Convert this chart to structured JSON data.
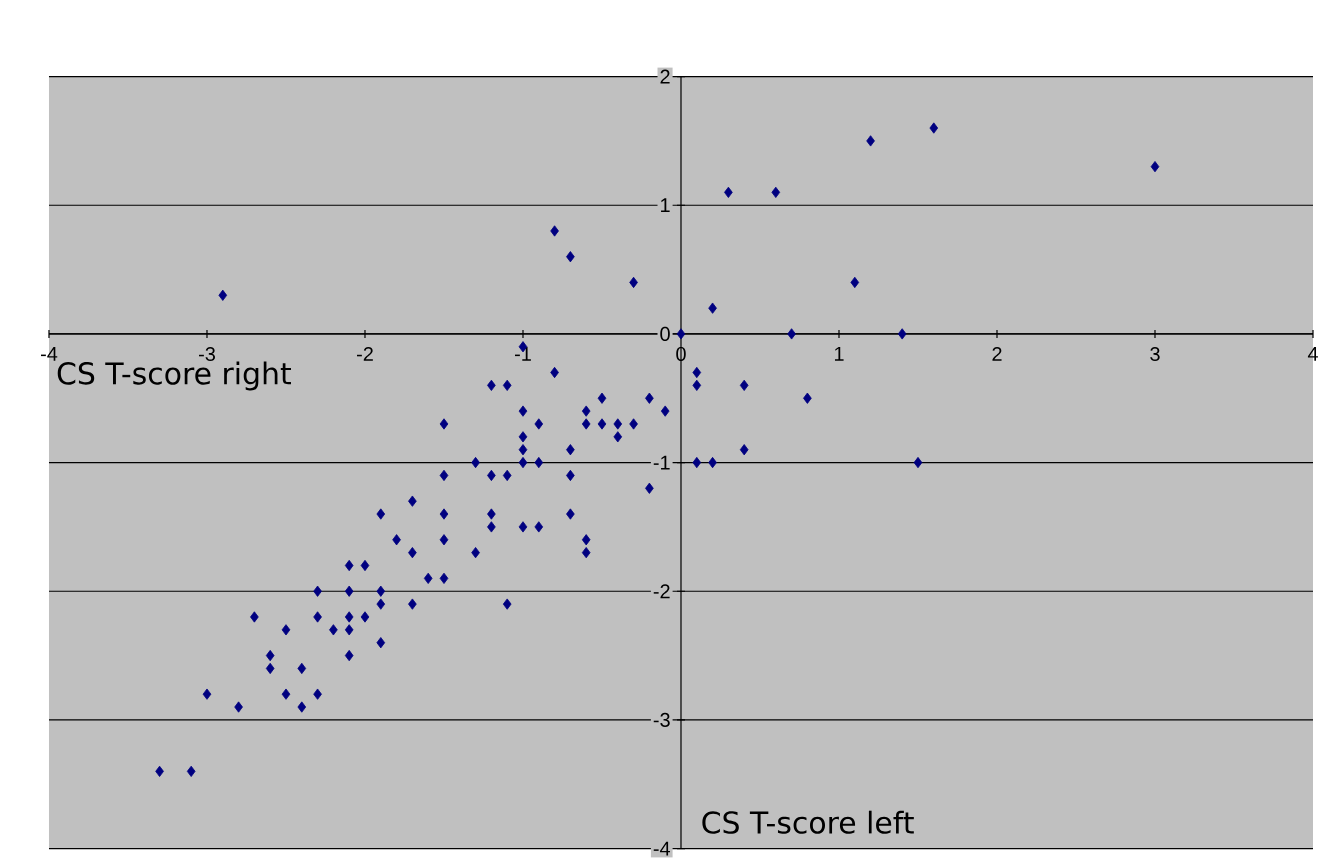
{
  "chart_data": {
    "type": "scatter",
    "xlabel": "CS T-score left",
    "ylabel": "CS T-score right",
    "xlim": [
      -4,
      4
    ],
    "ylim": [
      -4,
      2
    ],
    "xticks": [
      -4,
      -3,
      -2,
      -1,
      0,
      1,
      2,
      3,
      4
    ],
    "yticks": [
      -4,
      -3,
      -2,
      -1,
      0,
      1,
      2
    ],
    "grid": "y",
    "marker": "diamond",
    "series": [
      {
        "color": "#000080",
        "x": [
          -2.9,
          -0.8,
          -0.7,
          -0.3,
          0,
          0.2,
          0.3,
          0.6,
          1.2,
          1.6,
          3.0,
          1.1,
          0.7,
          1.4,
          -1.0,
          -0.8,
          -1.2,
          -1.1,
          0.1,
          0.1,
          0.4,
          0.8,
          -0.2,
          -0.1,
          -0.5,
          -0.6,
          -0.6,
          -0.5,
          -0.4,
          -0.4,
          -0.3,
          -1.0,
          -0.9,
          -1.5,
          -1.0,
          -1.0,
          -0.7,
          0.4,
          -1.0,
          -0.9,
          -1.3,
          0.1,
          0.2,
          1.5,
          -1.5,
          -1.2,
          -1.1,
          -0.7,
          -0.2,
          -1.7,
          -1.9,
          -1.5,
          -1.2,
          -0.7,
          -1.2,
          -1.0,
          -0.9,
          -1.8,
          -1.5,
          -0.6,
          -0.6,
          -1.7,
          -1.3,
          -2.0,
          -2.1,
          -1.6,
          -1.5,
          -2.3,
          -2.1,
          -1.9,
          -1.9,
          -1.7,
          -1.1,
          -2.7,
          -2.3,
          -2.1,
          -2.0,
          -2.5,
          -2.2,
          -2.1,
          -1.9,
          -2.6,
          -2.1,
          -2.6,
          -2.4,
          -3.0,
          -2.5,
          -2.3,
          -2.8,
          -2.4,
          -3.3,
          -3.1
        ],
        "values": [
          0.3,
          0.8,
          0.6,
          0.4,
          0,
          0.2,
          1.1,
          1.1,
          1.5,
          1.6,
          1.3,
          0.4,
          0,
          0,
          -0.1,
          -0.3,
          -0.4,
          -0.4,
          -0.3,
          -0.4,
          -0.4,
          -0.5,
          -0.5,
          -0.6,
          -0.5,
          -0.6,
          -0.7,
          -0.7,
          -0.7,
          -0.8,
          -0.7,
          -0.6,
          -0.7,
          -0.7,
          -0.8,
          -0.9,
          -0.9,
          -0.9,
          -1.0,
          -1.0,
          -1.0,
          -1.0,
          -1.0,
          -1.0,
          -1.1,
          -1.1,
          -1.1,
          -1.1,
          -1.2,
          -1.3,
          -1.4,
          -1.4,
          -1.4,
          -1.4,
          -1.5,
          -1.5,
          -1.5,
          -1.6,
          -1.6,
          -1.6,
          -1.7,
          -1.7,
          -1.7,
          -1.8,
          -1.8,
          -1.9,
          -1.9,
          -2.0,
          -2.0,
          -2.0,
          -2.1,
          -2.1,
          -2.1,
          -2.2,
          -2.2,
          -2.2,
          -2.2,
          -2.3,
          -2.3,
          -2.3,
          -2.4,
          -2.5,
          -2.5,
          -2.6,
          -2.6,
          -2.8,
          -2.8,
          -2.8,
          -2.9,
          -2.9,
          -3.4,
          -3.4
        ]
      }
    ]
  }
}
